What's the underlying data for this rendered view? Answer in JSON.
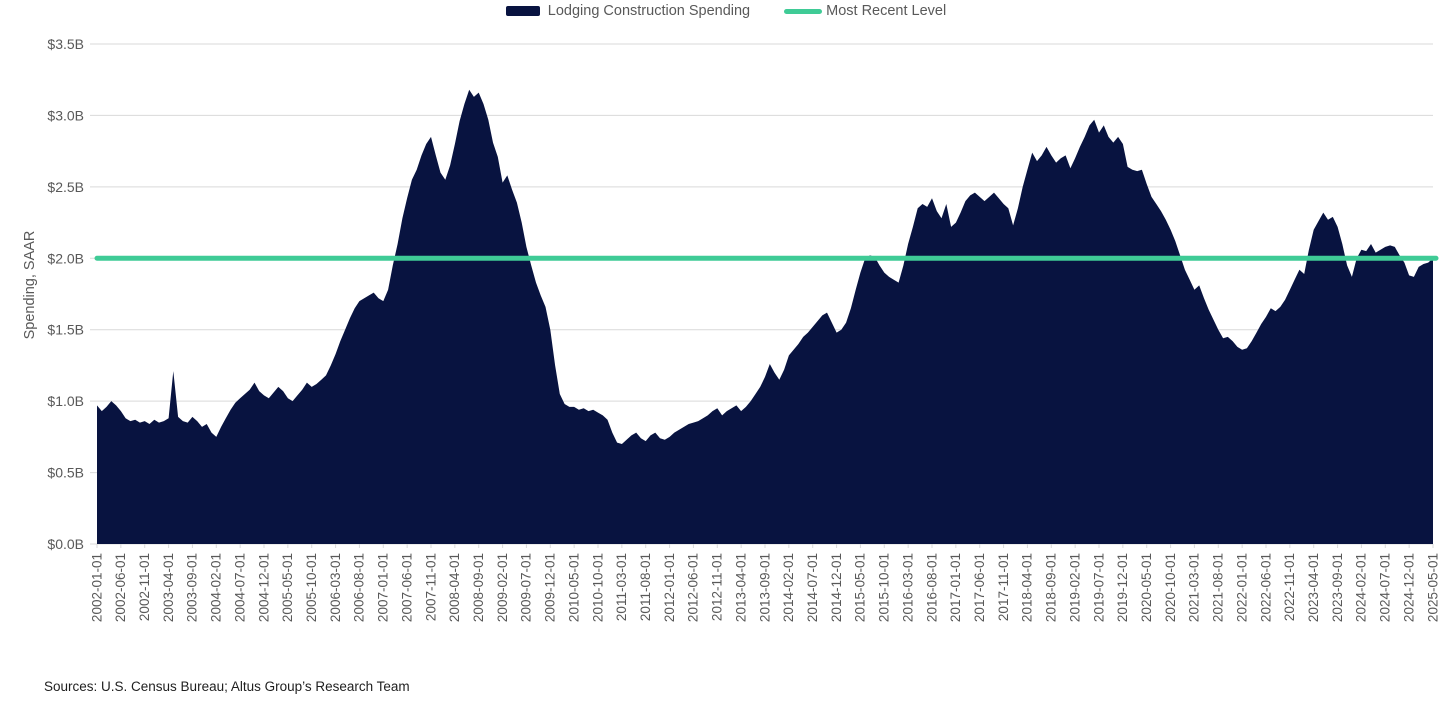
{
  "legend": {
    "series_label": "Lodging Construction Spending",
    "line_label": "Most Recent Level"
  },
  "y_axis": {
    "title": "Spending, SAAR"
  },
  "footer": {
    "sources": "Sources: U.S. Census Bureau; Altus Group’s Research Team"
  },
  "colors": {
    "area_navy": "#081340",
    "recent_level_green": "#3FCB96",
    "grid_gray": "#D9D9D9",
    "axis_text_gray": "#595959"
  },
  "chart_data": {
    "type": "area",
    "title": "",
    "ylabel": "Spending, SAAR",
    "unit": "$B (SAAR)",
    "ylim": [
      0,
      3.5
    ],
    "y_tick_step": 0.5,
    "y_tick_labels": [
      "$0.0B",
      "$0.5B",
      "$1.0B",
      "$1.5B",
      "$2.0B",
      "$2.5B",
      "$3.0B",
      "$3.5B"
    ],
    "grid": "horizontal",
    "legend_position": "top-center",
    "x_frequency": "monthly",
    "x_range": [
      "2002-01-01",
      "2025-05-01"
    ],
    "x_tick_every_months": 5,
    "x_tick_labels": [
      "2002-01-01",
      "2002-06-01",
      "2002-11-01",
      "2003-04-01",
      "2003-09-01",
      "2004-02-01",
      "2004-07-01",
      "2004-12-01",
      "2005-05-01",
      "2005-10-01",
      "2006-03-01",
      "2006-08-01",
      "2007-01-01",
      "2007-06-01",
      "2007-11-01",
      "2008-04-01",
      "2008-09-01",
      "2009-02-01",
      "2009-07-01",
      "2009-12-01",
      "2010-05-01",
      "2010-10-01",
      "2011-03-01",
      "2011-08-01",
      "2012-01-01",
      "2012-06-01",
      "2012-11-01",
      "2013-04-01",
      "2013-09-01",
      "2014-02-01",
      "2014-07-01",
      "2014-12-01",
      "2015-05-01",
      "2015-10-01",
      "2016-03-01",
      "2016-08-01",
      "2017-01-01",
      "2017-06-01",
      "2017-11-01",
      "2018-04-01",
      "2018-09-01",
      "2019-02-01",
      "2019-07-01",
      "2019-12-01",
      "2020-05-01",
      "2020-10-01",
      "2021-03-01",
      "2021-08-01",
      "2022-01-01",
      "2022-06-01",
      "2022-11-01",
      "2023-04-01",
      "2023-09-01",
      "2024-02-01",
      "2024-07-01",
      "2024-12-01",
      "2025-05-01"
    ],
    "most_recent_level": 2.0,
    "series": [
      {
        "name": "Lodging Construction Spending",
        "values": [
          0.97,
          0.93,
          0.96,
          1.0,
          0.97,
          0.93,
          0.88,
          0.86,
          0.87,
          0.85,
          0.86,
          0.84,
          0.87,
          0.85,
          0.86,
          0.88,
          1.21,
          0.89,
          0.86,
          0.85,
          0.89,
          0.86,
          0.82,
          0.84,
          0.78,
          0.75,
          0.82,
          0.88,
          0.94,
          0.99,
          1.02,
          1.05,
          1.08,
          1.13,
          1.07,
          1.04,
          1.02,
          1.06,
          1.1,
          1.07,
          1.02,
          1.0,
          1.04,
          1.08,
          1.13,
          1.1,
          1.12,
          1.15,
          1.18,
          1.25,
          1.33,
          1.42,
          1.5,
          1.58,
          1.65,
          1.7,
          1.72,
          1.74,
          1.76,
          1.72,
          1.7,
          1.78,
          1.95,
          2.1,
          2.28,
          2.42,
          2.55,
          2.62,
          2.72,
          2.8,
          2.85,
          2.72,
          2.6,
          2.55,
          2.65,
          2.8,
          2.96,
          3.08,
          3.18,
          3.13,
          3.16,
          3.08,
          2.97,
          2.81,
          2.71,
          2.53,
          2.58,
          2.48,
          2.39,
          2.25,
          2.08,
          1.95,
          1.83,
          1.74,
          1.66,
          1.5,
          1.25,
          1.05,
          0.98,
          0.96,
          0.96,
          0.94,
          0.95,
          0.93,
          0.94,
          0.92,
          0.9,
          0.87,
          0.78,
          0.71,
          0.7,
          0.73,
          0.76,
          0.78,
          0.74,
          0.72,
          0.76,
          0.78,
          0.74,
          0.73,
          0.75,
          0.78,
          0.8,
          0.82,
          0.84,
          0.85,
          0.86,
          0.88,
          0.9,
          0.93,
          0.95,
          0.9,
          0.93,
          0.95,
          0.97,
          0.93,
          0.96,
          1.0,
          1.05,
          1.1,
          1.17,
          1.26,
          1.2,
          1.15,
          1.22,
          1.32,
          1.36,
          1.4,
          1.45,
          1.48,
          1.52,
          1.56,
          1.6,
          1.62,
          1.55,
          1.48,
          1.5,
          1.55,
          1.65,
          1.78,
          1.9,
          2.0,
          2.02,
          2.01,
          1.95,
          1.9,
          1.87,
          1.85,
          1.83,
          1.95,
          2.1,
          2.22,
          2.35,
          2.38,
          2.36,
          2.42,
          2.33,
          2.28,
          2.38,
          2.22,
          2.25,
          2.32,
          2.4,
          2.44,
          2.46,
          2.43,
          2.4,
          2.43,
          2.46,
          2.42,
          2.38,
          2.35,
          2.23,
          2.35,
          2.5,
          2.62,
          2.74,
          2.68,
          2.72,
          2.78,
          2.72,
          2.67,
          2.7,
          2.72,
          2.63,
          2.7,
          2.78,
          2.85,
          2.93,
          2.97,
          2.88,
          2.93,
          2.85,
          2.81,
          2.85,
          2.8,
          2.64,
          2.62,
          2.61,
          2.62,
          2.52,
          2.43,
          2.38,
          2.33,
          2.27,
          2.2,
          2.12,
          2.02,
          1.92,
          1.85,
          1.78,
          1.81,
          1.72,
          1.64,
          1.57,
          1.5,
          1.44,
          1.45,
          1.42,
          1.38,
          1.36,
          1.37,
          1.42,
          1.48,
          1.54,
          1.59,
          1.65,
          1.63,
          1.66,
          1.71,
          1.78,
          1.85,
          1.92,
          1.89,
          2.06,
          2.2,
          2.26,
          2.32,
          2.27,
          2.29,
          2.22,
          2.1,
          1.95,
          1.87,
          2.0,
          2.06,
          2.05,
          2.1,
          2.04,
          2.06,
          2.08,
          2.09,
          2.08,
          2.02,
          1.97,
          1.88,
          1.87,
          1.94,
          1.96,
          1.97,
          2.0
        ]
      }
    ]
  }
}
